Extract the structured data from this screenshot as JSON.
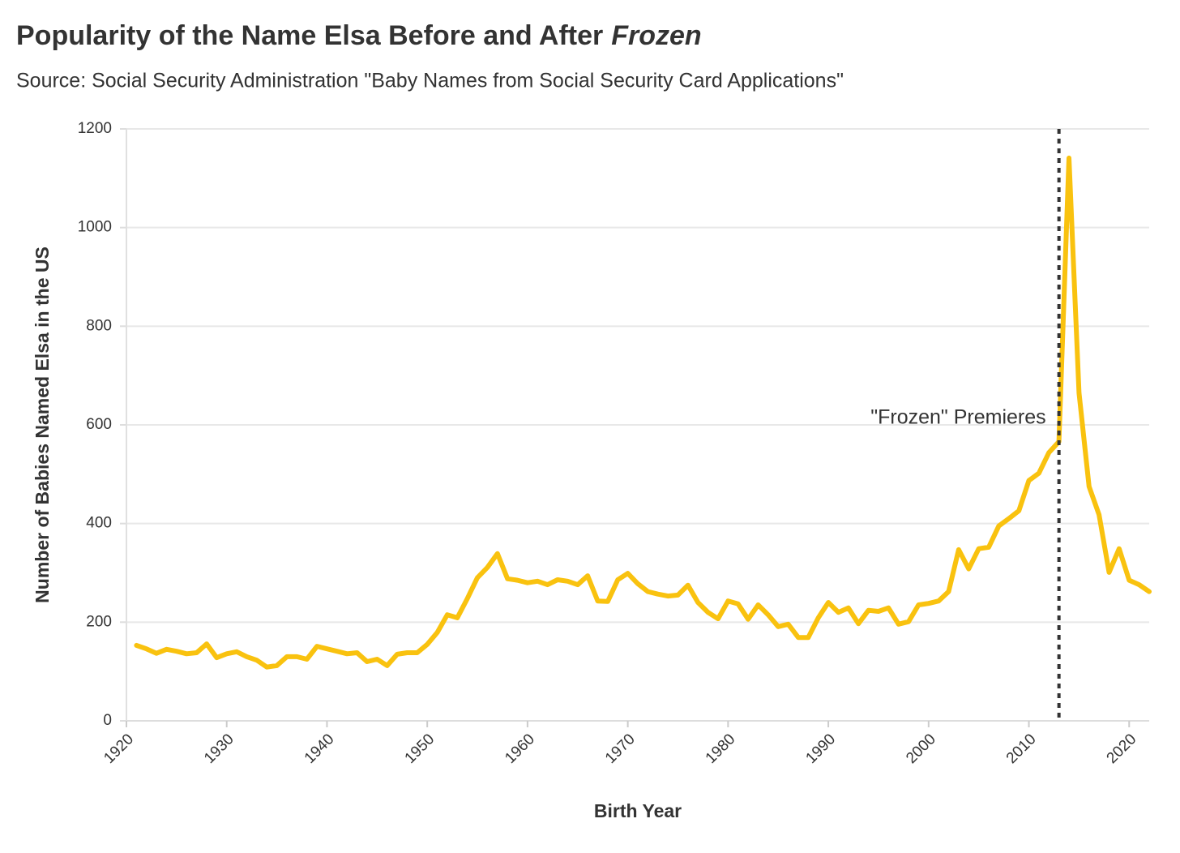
{
  "chart_data": {
    "type": "line",
    "title": [
      "Popularity of the Name Elsa Before and After",
      "Frozen"
    ],
    "subtitle": "Source: Social Security Administration \"Baby Names from Social Security Card Applications\"",
    "x_label": "Birth Year",
    "y_label": "Number of Babies Named Elsa in the US",
    "x": [
      1921,
      1922,
      1923,
      1924,
      1925,
      1926,
      1927,
      1928,
      1929,
      1930,
      1931,
      1932,
      1933,
      1934,
      1935,
      1936,
      1937,
      1938,
      1939,
      1940,
      1941,
      1942,
      1943,
      1944,
      1945,
      1946,
      1947,
      1948,
      1949,
      1950,
      1951,
      1952,
      1953,
      1954,
      1955,
      1956,
      1957,
      1958,
      1959,
      1960,
      1961,
      1962,
      1963,
      1964,
      1965,
      1966,
      1967,
      1968,
      1969,
      1970,
      1971,
      1972,
      1973,
      1974,
      1975,
      1976,
      1977,
      1978,
      1979,
      1980,
      1981,
      1982,
      1983,
      1984,
      1985,
      1986,
      1987,
      1988,
      1989,
      1990,
      1991,
      1992,
      1993,
      1994,
      1995,
      1996,
      1997,
      1998,
      1999,
      2000,
      2001,
      2002,
      2003,
      2004,
      2005,
      2006,
      2007,
      2008,
      2009,
      2010,
      2011,
      2012,
      2013,
      2014,
      2015,
      2016,
      2017,
      2018,
      2019,
      2020,
      2021,
      2022
    ],
    "series": [
      {
        "name": "Elsa",
        "color": "#f9c20f",
        "values": [
          153,
          146,
          137,
          145,
          141,
          136,
          138,
          156,
          128,
          136,
          140,
          130,
          123,
          109,
          112,
          130,
          130,
          125,
          151,
          146,
          141,
          136,
          138,
          120,
          125,
          112,
          135,
          138,
          138,
          155,
          179,
          215,
          209,
          248,
          290,
          311,
          339,
          288,
          285,
          280,
          283,
          276,
          286,
          283,
          276,
          294,
          243,
          242,
          286,
          299,
          278,
          262,
          257,
          253,
          255,
          275,
          240,
          220,
          207,
          243,
          237,
          206,
          235,
          215,
          191,
          196,
          169,
          169,
          209,
          240,
          220,
          229,
          197,
          224,
          222,
          229,
          196,
          201,
          235,
          238,
          243,
          262,
          347,
          308,
          349,
          352,
          395,
          410,
          426,
          487,
          502,
          544,
          566,
          1141,
          665,
          475,
          418,
          301,
          349,
          285,
          276,
          262
        ]
      }
    ],
    "xlim": [
      1920,
      2022
    ],
    "xticks": [
      1920,
      1930,
      1940,
      1950,
      1960,
      1970,
      1980,
      1990,
      2000,
      2010,
      2020
    ],
    "ylim": [
      0,
      1200
    ],
    "yticks": [
      0,
      200,
      400,
      600,
      800,
      1000,
      1200
    ],
    "grid": true,
    "annotations": [
      {
        "text": "\"Frozen\" Premieres",
        "x": 2013
      }
    ]
  }
}
